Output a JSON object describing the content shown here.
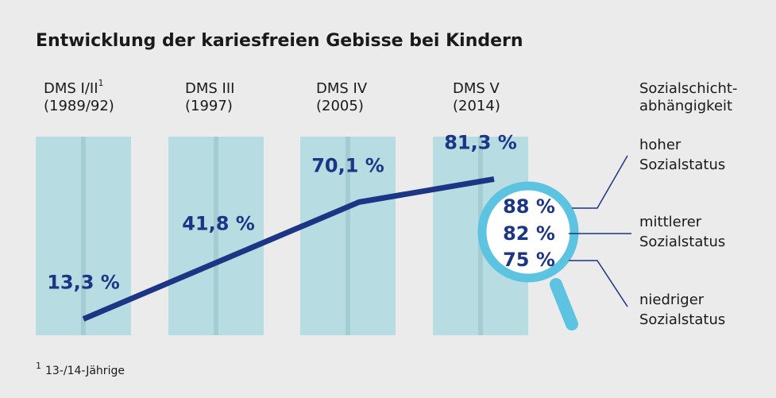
{
  "chart_data": {
    "type": "line",
    "title": "Entwicklung der kariesfreien Gebisse bei Kindern",
    "categories": [
      "DMS I/II",
      "DMS III",
      "DMS IV",
      "DMS V"
    ],
    "periods": [
      "(1989/92)",
      "(1997)",
      "(2005)",
      "(2014)"
    ],
    "values": [
      13.3,
      41.8,
      70.1,
      81.3
    ],
    "value_labels": [
      "13,3 %",
      "41,8 %",
      "70,1 %",
      "81,3 %"
    ],
    "ylim": [
      0,
      100
    ],
    "color": "#1c3584",
    "bar_color": "#b7dde3",
    "footnote": {
      "marker": "1",
      "text": "13-/14-Jährige"
    },
    "inset": {
      "title": [
        "Sozialschicht-",
        "abhängigkeit"
      ],
      "categories": [
        [
          "hoher",
          "Sozialstatus"
        ],
        [
          "mittlerer",
          "Sozialstatus"
        ],
        [
          "niedriger",
          "Sozialstatus"
        ]
      ],
      "values": [
        88,
        82,
        75
      ],
      "value_labels": [
        "88 %",
        "82 %",
        "75 %"
      ],
      "color": "#5cc3e0"
    }
  }
}
